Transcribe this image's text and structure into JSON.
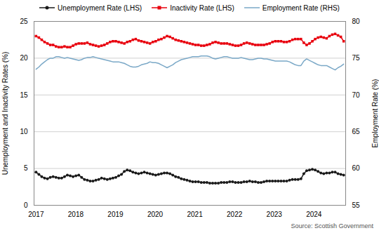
{
  "chart_data": {
    "type": "line",
    "x": [
      2017,
      2017.0718,
      2017.1435,
      2017.2153,
      2017.287,
      2017.3588,
      2017.4306,
      2017.5023,
      2017.5741,
      2017.6458,
      2017.7176,
      2017.7894,
      2017.8611,
      2017.9329,
      2018.0046,
      2018.0764,
      2018.1481,
      2018.2199,
      2018.2917,
      2018.3634,
      2018.4352,
      2018.5069,
      2018.5787,
      2018.6505,
      2018.7222,
      2018.794,
      2018.8657,
      2018.9375,
      2019.0093,
      2019.081,
      2019.1528,
      2019.2245,
      2019.2963,
      2019.3681,
      2019.4398,
      2019.5116,
      2019.5833,
      2019.6551,
      2019.7269,
      2019.7986,
      2019.8704,
      2019.9421,
      2020.0139,
      2020.0856,
      2020.1574,
      2020.2292,
      2020.3009,
      2020.3727,
      2020.4444,
      2020.5162,
      2020.588,
      2020.6597,
      2020.7315,
      2020.8032,
      2020.875,
      2020.9468,
      2021.0185,
      2021.0903,
      2021.162,
      2021.2338,
      2021.3056,
      2021.3773,
      2021.4491,
      2021.5208,
      2021.5926,
      2021.6644,
      2021.7361,
      2021.8079,
      2021.8796,
      2021.9514,
      2022.0231,
      2022.0949,
      2022.1667,
      2022.2384,
      2022.3102,
      2022.3819,
      2022.4537,
      2022.5255,
      2022.5972,
      2022.669,
      2022.7407,
      2022.8125,
      2022.8843,
      2022.956,
      2023.0278,
      2023.0995,
      2023.1713,
      2023.2431,
      2023.3148,
      2023.3866,
      2023.4583,
      2023.5301,
      2023.6019,
      2023.6736,
      2023.7454,
      2023.8171,
      2023.8889,
      2023.9606,
      2024.0324,
      2024.1042,
      2024.1759,
      2024.2477,
      2024.3194,
      2024.3912,
      2024.463,
      2024.5347,
      2024.6065,
      2024.6782,
      2024.75
    ],
    "series": [
      {
        "name": "Unemployment Rate (LHS)",
        "color": "#1a1a1a",
        "marker": "circle",
        "values": [
          4.5,
          4.2,
          3.9,
          3.7,
          3.6,
          3.8,
          3.9,
          3.8,
          3.7,
          3.7,
          3.9,
          4.1,
          4.0,
          3.9,
          4.0,
          4.1,
          3.8,
          3.5,
          3.4,
          3.3,
          3.3,
          3.4,
          3.5,
          3.7,
          3.6,
          3.5,
          3.6,
          3.7,
          3.8,
          4.0,
          4.2,
          4.6,
          4.8,
          4.7,
          4.5,
          4.4,
          4.3,
          4.4,
          4.5,
          4.4,
          4.3,
          4.2,
          4.1,
          4.2,
          4.3,
          4.4,
          4.4,
          4.3,
          4.1,
          3.9,
          3.8,
          3.6,
          3.5,
          3.4,
          3.3,
          3.2,
          3.2,
          3.2,
          3.1,
          3.1,
          3.1,
          3.0,
          3.0,
          3.0,
          3.0,
          3.1,
          3.1,
          3.1,
          3.2,
          3.2,
          3.1,
          3.1,
          3.1,
          3.2,
          3.2,
          3.3,
          3.2,
          3.2,
          3.1,
          3.1,
          3.2,
          3.3,
          3.3,
          3.3,
          3.3,
          3.3,
          3.3,
          3.3,
          3.3,
          3.4,
          3.5,
          3.5,
          3.5,
          3.6,
          4.3,
          4.7,
          4.8,
          4.9,
          4.8,
          4.6,
          4.4,
          4.3,
          4.4,
          4.4,
          4.5,
          4.5,
          4.3,
          4.2,
          4.1
        ]
      },
      {
        "name": "Inactivity Rate (LHS)",
        "color": "#e8000d",
        "marker": "square",
        "values": [
          23.0,
          22.8,
          22.5,
          22.2,
          22.0,
          21.8,
          21.8,
          21.6,
          21.5,
          21.5,
          21.6,
          21.5,
          21.5,
          21.7,
          21.9,
          22.0,
          22.0,
          22.0,
          22.1,
          21.9,
          21.8,
          21.7,
          21.6,
          21.7,
          21.8,
          22.0,
          22.2,
          22.3,
          22.3,
          22.2,
          22.1,
          22.0,
          22.2,
          22.3,
          22.5,
          22.6,
          22.4,
          22.3,
          22.2,
          22.1,
          22.0,
          22.2,
          22.3,
          22.5,
          22.6,
          22.8,
          23.0,
          22.9,
          22.7,
          22.5,
          22.4,
          22.3,
          22.2,
          22.1,
          22.0,
          21.9,
          21.8,
          21.8,
          21.7,
          21.7,
          21.8,
          21.9,
          22.1,
          22.2,
          22.1,
          22.0,
          22.0,
          22.0,
          21.9,
          21.8,
          21.7,
          21.7,
          21.8,
          22.0,
          22.1,
          22.0,
          21.9,
          21.8,
          21.8,
          21.8,
          21.8,
          21.9,
          22.0,
          22.2,
          22.3,
          22.3,
          22.3,
          22.2,
          22.2,
          22.3,
          22.5,
          22.6,
          22.6,
          22.6,
          22.1,
          21.8,
          22.0,
          22.3,
          22.6,
          22.8,
          22.9,
          22.8,
          22.7,
          23.0,
          23.2,
          23.3,
          23.1,
          22.9,
          22.3
        ]
      },
      {
        "name": "Employment Rate (RHS)",
        "color": "#7aa8c7",
        "axis": "y2",
        "values": [
          73.5,
          73.8,
          74.2,
          74.5,
          74.8,
          75.0,
          75.0,
          75.2,
          75.2,
          75.1,
          75.0,
          75.1,
          75.0,
          74.9,
          74.8,
          74.7,
          74.8,
          75.0,
          75.1,
          75.1,
          75.2,
          75.1,
          75.0,
          74.9,
          74.8,
          74.7,
          74.6,
          74.5,
          74.5,
          74.5,
          74.4,
          74.3,
          74.1,
          73.9,
          73.8,
          73.8,
          73.9,
          74.1,
          74.2,
          74.3,
          74.5,
          74.4,
          74.4,
          74.3,
          74.1,
          73.9,
          73.7,
          73.9,
          74.1,
          74.4,
          74.6,
          74.8,
          74.9,
          75.0,
          75.1,
          75.2,
          75.2,
          75.2,
          75.3,
          75.3,
          75.3,
          75.2,
          75.0,
          74.9,
          75.0,
          75.1,
          75.2,
          75.2,
          75.1,
          75.0,
          75.0,
          75.0,
          75.1,
          75.0,
          74.9,
          74.8,
          74.8,
          74.9,
          75.0,
          75.0,
          74.9,
          74.9,
          74.8,
          74.7,
          74.6,
          74.6,
          74.6,
          74.6,
          74.6,
          74.5,
          74.3,
          74.1,
          74.0,
          74.0,
          74.6,
          74.9,
          74.7,
          74.5,
          74.3,
          74.1,
          74.0,
          74.0,
          74.0,
          73.8,
          73.6,
          73.4,
          73.7,
          73.9,
          74.2
        ]
      }
    ],
    "xlim": [
      2016.95,
      2024.8
    ],
    "xticks": [
      2017,
      2018,
      2019,
      2020,
      2021,
      2022,
      2023,
      2024
    ],
    "ylim": [
      0,
      25
    ],
    "yticks": [
      0,
      5,
      10,
      15,
      20,
      25
    ],
    "y2lim": [
      55,
      80
    ],
    "y2ticks": [
      55,
      60,
      65,
      70,
      75,
      80
    ],
    "ylabel": "Unemployment and Inactivity Rates (%)",
    "y2label": "Employment Rate (%)",
    "caption": "Source: Scottish Government",
    "grid": true,
    "legend": "top"
  }
}
